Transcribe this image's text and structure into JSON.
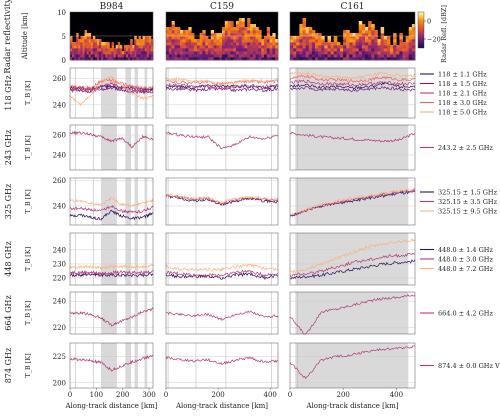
{
  "chart_data": [
    {
      "type": "heatmap",
      "row_label": "Radar reflectivity",
      "ylabel": "Altitude [km]",
      "ylim": [
        0,
        10
      ],
      "yticks": [
        0,
        5,
        10
      ],
      "flights": [
        "B984",
        "C159",
        "C161"
      ],
      "colorbar": {
        "label": "Radar Refl. [dBZ]",
        "ticks": [
          0,
          -20
        ],
        "range": [
          -30,
          10
        ],
        "colors": [
          "#1b0c41",
          "#721f81",
          "#d44842",
          "#f98e09",
          "#fcffa4"
        ]
      }
    },
    {
      "type": "line",
      "row_label": "118 GHz",
      "ylabel": "T_B [K]",
      "ylim": [
        230,
        268
      ],
      "yticks": [
        240,
        260
      ],
      "series": [
        {
          "name": "118 ± 1.1 GHz",
          "color": "#2c115f",
          "values": [
            [
              253,
              253,
              252,
              254,
              254,
              253,
              253,
              252,
              252
            ],
            [
              254,
              254,
              253,
              255,
              254,
              254,
              254,
              253,
              254
            ],
            [
              254,
              255,
              253,
              254,
              253,
              254,
              256,
              254,
              254
            ]
          ]
        },
        {
          "name": "118 ± 1.5 GHz",
          "color": "#721f81",
          "values": [
            [
              251,
              251,
              250,
              252,
              253,
              251,
              250,
              250,
              249
            ],
            [
              252,
              252,
              251,
              252,
              252,
              251,
              252,
              251,
              252
            ],
            [
              252,
              253,
              251,
              252,
              251,
              252,
              253,
              252,
              251
            ]
          ]
        },
        {
          "name": "118 ± 2.1 GHz",
          "color": "#b73779",
          "values": [
            [
              252,
              252,
              251,
              254,
              256,
              253,
              252,
              251,
              250
            ],
            [
              255,
              255,
              254,
              254,
              253,
              254,
              255,
              254,
              255
            ],
            [
              257,
              258,
              256,
              256,
              255,
              256,
              257,
              256,
              256
            ]
          ]
        },
        {
          "name": "118 ± 3.0 GHz",
          "color": "#f1605d",
          "values": [
            [
              254,
              253,
              253,
              258,
              259,
              256,
              254,
              253,
              253
            ],
            [
              258,
              257,
              257,
              257,
              256,
              257,
              258,
              257,
              258
            ],
            [
              260,
              262,
              259,
              259,
              258,
              259,
              261,
              259,
              259
            ]
          ]
        },
        {
          "name": "118 ± 5.0 GHz",
          "color": "#feb078",
          "values": [
            [
              247,
              240,
              247,
              258,
              261,
              255,
              249,
              245,
              246
            ],
            [
              260,
              259,
              258,
              258,
              256,
              257,
              259,
              258,
              259
            ],
            [
              264,
              264,
              262,
              261,
              260,
              262,
              264,
              262,
              262
            ]
          ]
        }
      ]
    },
    {
      "type": "line",
      "row_label": "243 GHz",
      "ylabel": "T_B [K]",
      "ylim": [
        225,
        270
      ],
      "yticks": [
        240,
        260
      ],
      "series": [
        {
          "name": "243.2 ± 2.5 GHz",
          "color": "#b73779",
          "values": [
            [
              262,
              262,
              261,
              258,
              254,
              257,
              248,
              258,
              256
            ],
            [
              262,
              260,
              258,
              258,
              246,
              251,
              258,
              256,
              260
            ],
            [
              262,
              260,
              258,
              257,
              256,
              255,
              254,
              255,
              262
            ]
          ]
        }
      ]
    },
    {
      "type": "line",
      "row_label": "325 GHz",
      "ylabel": "T_B [K]",
      "ylim": [
        225,
        262
      ],
      "yticks": [
        240,
        260
      ],
      "series": [
        {
          "name": "325.15 ± 1.5 GHz",
          "color": "#2c115f",
          "values": [
            [
              232,
              233,
              231,
              230,
              236,
              232,
              230,
              231,
              234
            ],
            [
              248,
              246,
              244,
              245,
              241,
              244,
              246,
              244,
              243
            ],
            [
              232,
              236,
              240,
              242,
              244,
              246,
              248,
              250,
              251
            ]
          ]
        },
        {
          "name": "325.15 ± 3.5 GHz",
          "color": "#b73779",
          "values": [
            [
              238,
              238,
              237,
              236,
              240,
              236,
              235,
              236,
              239
            ],
            [
              248,
              247,
              245,
              246,
              242,
              245,
              246,
              245,
              244
            ],
            [
              232,
              236,
              240,
              243,
              245,
              247,
              249,
              251,
              252
            ]
          ]
        },
        {
          "name": "325.15 ± 9.5 GHz",
          "color": "#feb078",
          "values": [
            [
              244,
              244,
              242,
              241,
              246,
              241,
              240,
              242,
              244
            ],
            [
              249,
              247,
              246,
              246,
              243,
              246,
              247,
              246,
              245
            ],
            [
              233,
              237,
              241,
              244,
              246,
              248,
              250,
              252,
              253
            ]
          ]
        }
      ]
    },
    {
      "type": "line",
      "row_label": "448 GHz",
      "ylabel": "T_B [K]",
      "ylim": [
        215,
        252
      ],
      "yticks": [
        220,
        230,
        240
      ],
      "series": [
        {
          "name": "448.0 ± 1.4 GHz",
          "color": "#2c115f",
          "values": [
            [
              222,
              222,
              223,
              222,
              222,
              222,
              222,
              222,
              223
            ],
            [
              222,
              221,
              221,
              221,
              220,
              222,
              223,
              220,
              222
            ],
            [
              220,
              221,
              222,
              224,
              226,
              228,
              230,
              231,
              232
            ]
          ]
        },
        {
          "name": "448.0 ± 3.0 GHz",
          "color": "#b73779",
          "values": [
            [
              224,
              224,
              224,
              223,
              224,
              224,
              224,
              224,
              225
            ],
            [
              224,
              223,
              222,
              222,
              222,
              224,
              225,
              222,
              223
            ],
            [
              222,
              223,
              225,
              228,
              231,
              233,
              235,
              236,
              237
            ]
          ]
        },
        {
          "name": "448.0 ± 7.2 GHz",
          "color": "#feb078",
          "values": [
            [
              228,
              228,
              228,
              227,
              228,
              228,
              228,
              228,
              229
            ],
            [
              228,
              226,
              226,
              226,
              226,
              228,
              229,
              227,
              226
            ],
            [
              224,
              226,
              230,
              234,
              238,
              242,
              244,
              246,
              247
            ]
          ]
        }
      ]
    },
    {
      "type": "line",
      "row_label": "664 GHz",
      "ylabel": "T_B [K]",
      "ylim": [
        215,
        247
      ],
      "yticks": [
        220,
        240
      ],
      "series": [
        {
          "name": "664.0 ± 4.2 GHz",
          "color": "#b73779",
          "values": [
            [
              231,
              231,
              230,
              227,
              222,
              225,
              228,
              232,
              234
            ],
            [
              231,
              230,
              229,
              230,
              226,
              230,
              232,
              228,
              229
            ],
            [
              228,
              214,
              232,
              234,
              237,
              240,
              242,
              243,
              245
            ]
          ]
        }
      ]
    },
    {
      "type": "line",
      "row_label": "874 GHz",
      "ylabel": "T_B [K]",
      "ylim": [
        195,
        238
      ],
      "yticks": [
        200,
        225
      ],
      "xlabel": "Along-track distance [km]",
      "series": [
        {
          "name": "874.4 ± 0.0 GHz V",
          "color": "#b73779",
          "values": [
            [
              223,
              222,
              221,
              219,
              212,
              216,
              220,
              223,
              226
            ],
            [
              224,
              222,
              221,
              222,
              218,
              222,
              224,
              220,
              221
            ],
            [
              220,
              204,
              222,
              225,
              227,
              230,
              232,
              233,
              235
            ]
          ]
        }
      ]
    }
  ],
  "columns": [
    {
      "title": "B984",
      "xlim": [
        0,
        315
      ],
      "xticks": [
        0,
        100,
        200,
        300
      ],
      "shading": [
        [
          118,
          178
        ],
        [
          210,
          232
        ],
        [
          245,
          258
        ],
        [
          283,
          293
        ]
      ],
      "vlines": [
        20,
        90
      ]
    },
    {
      "title": "C159",
      "xlim": [
        0,
        430
      ],
      "xticks": [
        0,
        200,
        400
      ],
      "shading": [],
      "vlines": [
        8,
        115,
        230,
        405
      ]
    },
    {
      "title": "C161",
      "xlim": [
        0,
        470
      ],
      "xticks": [
        0,
        200,
        400
      ],
      "shading": [
        [
          20,
          445
        ]
      ],
      "vlines": [
        28
      ]
    }
  ],
  "legend_labels": {
    "r1": [
      "118 ± 1.1 GHz",
      "118 ± 1.5 GHz",
      "118 ± 2.1 GHz",
      "118 ± 3.0 GHz",
      "118 ± 5.0 GHz"
    ],
    "r2": [
      "243.2 ± 2.5 GHz"
    ],
    "r3": [
      "325.15 ± 1.5 GHz",
      "325.15 ± 3.5 GHz",
      "325.15 ± 9.5 GHz"
    ],
    "r4": [
      "448.0 ± 1.4 GHz",
      "448.0 ± 3.0 GHz",
      "448.0 ± 7.2 GHz"
    ],
    "r5": [
      "664.0 ± 4.2 GHz"
    ],
    "r6": [
      "874.4 ± 0.0 GHz V"
    ]
  },
  "ytick_label": "T_B [K]",
  "xaxis_label": "Along-track distance [km]"
}
